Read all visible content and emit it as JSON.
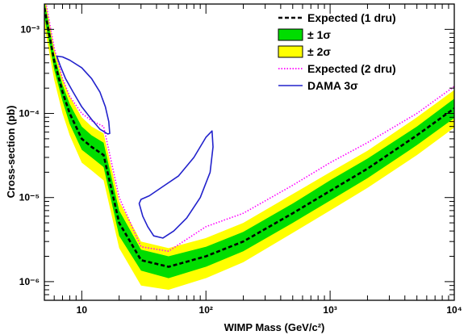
{
  "chart_data": {
    "type": "line",
    "xlabel": "WIMP Mass (GeV/c²)",
    "ylabel": "Cross-section (pb)",
    "x_scale": "log",
    "y_scale": "log",
    "xlim": [
      5,
      10000
    ],
    "ylim": [
      6e-07,
      0.002
    ],
    "x_ticks": [
      {
        "value": 10,
        "label": "10"
      },
      {
        "value": 100,
        "label": "10²"
      },
      {
        "value": 1000,
        "label": "10³"
      },
      {
        "value": 10000,
        "label": "10⁴"
      }
    ],
    "y_ticks": [
      {
        "value": 1e-06,
        "label": "10⁻⁶"
      },
      {
        "value": 1e-05,
        "label": "10⁻⁵"
      },
      {
        "value": 0.0001,
        "label": "10⁻⁴"
      },
      {
        "value": 0.001,
        "label": "10⁻³"
      }
    ],
    "legend": {
      "position": "top-right",
      "entries": [
        {
          "label": "Expected (1 dru)",
          "style": "dashed",
          "color": "#000000"
        },
        {
          "label": "± 1σ",
          "style": "fill",
          "color": "#00dd00"
        },
        {
          "label": "± 2σ",
          "style": "fill",
          "color": "#ffff00"
        },
        {
          "label": "Expected (2 dru)",
          "style": "dotted",
          "color": "#ff00ff"
        },
        {
          "label": "DAMA 3σ",
          "style": "solid",
          "color": "#2222cc"
        }
      ]
    },
    "series": [
      {
        "name": "Expected (1 dru)",
        "x": [
          5,
          6,
          7,
          8,
          10,
          12,
          15,
          20,
          30,
          50,
          100,
          200,
          500,
          1000,
          2000,
          5000,
          10000
        ],
        "y": [
          0.0018,
          0.00042,
          0.00018,
          0.0001,
          5e-05,
          4e-05,
          3.2e-05,
          5e-06,
          1.8e-06,
          1.5e-06,
          2e-06,
          3e-06,
          6.5e-06,
          1.2e-05,
          2.2e-05,
          5.5e-05,
          0.000115
        ]
      },
      {
        "name": "± 1σ",
        "x": [
          5,
          6,
          7,
          8,
          10,
          12,
          15,
          20,
          30,
          50,
          100,
          200,
          500,
          1000,
          2000,
          5000,
          10000
        ],
        "upper": [
          0.0022,
          0.0005,
          0.00022,
          0.00013,
          7e-05,
          5.5e-05,
          4.5e-05,
          7e-06,
          2.4e-06,
          2e-06,
          2.6e-06,
          3.9e-06,
          8.5e-06,
          1.6e-05,
          2.9e-05,
          7e-05,
          0.00015
        ],
        "lower": [
          0.0014,
          0.00033,
          0.00014,
          7.5e-05,
          3.7e-05,
          3e-05,
          2.3e-05,
          3.5e-06,
          1.35e-06,
          1.1e-06,
          1.5e-06,
          2.3e-06,
          5e-06,
          9.2e-06,
          1.7e-05,
          4.2e-05,
          8.8e-05
        ]
      },
      {
        "name": "± 2σ",
        "x": [
          5,
          6,
          7,
          8,
          10,
          12,
          15,
          20,
          30,
          50,
          100,
          200,
          500,
          1000,
          2000,
          5000,
          10000
        ],
        "upper": [
          0.0026,
          0.0006,
          0.00026,
          0.00016,
          9e-05,
          7e-05,
          5.8e-05,
          9e-06,
          3e-06,
          2.5e-06,
          3.3e-06,
          5e-06,
          1.1e-05,
          2e-05,
          3.6e-05,
          9e-05,
          0.00019
        ],
        "lower": [
          0.0011,
          0.00025,
          0.0001,
          5.5e-05,
          2.6e-05,
          2.1e-05,
          1.6e-05,
          2.5e-06,
          9e-07,
          8e-07,
          1.1e-06,
          1.7e-06,
          3.8e-06,
          7e-06,
          1.3e-05,
          3.2e-05,
          6.8e-05
        ]
      },
      {
        "name": "Expected (2 dru)",
        "x": [
          5,
          6,
          7,
          8,
          10,
          12,
          15,
          20,
          30,
          50,
          100,
          200,
          500,
          1000,
          2000,
          5000,
          10000
        ],
        "y": [
          0.0026,
          0.0006,
          0.00026,
          0.00016,
          0.0001,
          8.2e-05,
          7e-05,
          1e-05,
          2.6e-06,
          2.3e-06,
          4.5e-06,
          6.5e-06,
          1.4e-05,
          2.6e-05,
          4.5e-05,
          0.0001,
          0.00021
        ]
      },
      {
        "name": "DAMA 3σ",
        "contours": [
          {
            "x": [
              6.3,
              7,
              8,
              10,
              12,
              14,
              15.5,
              16.5,
              16.8,
              16.2,
              14,
              12,
              10,
              8.5,
              7.4,
              6.7,
              6.3
            ],
            "y": [
              0.00048,
              0.00047,
              0.00043,
              0.00035,
              0.00026,
              0.00018,
              0.00012,
              8e-05,
              5.8e-05,
              5.7e-05,
              6.5e-05,
              8.5e-05,
              0.00012,
              0.00018,
              0.00026,
              0.00037,
              0.00048
            ]
          },
          {
            "x": [
              29,
              30,
              35,
              45,
              60,
              80,
              100,
              112,
              114,
              108,
              90,
              70,
              55,
              45,
              38,
              34,
              31,
              29
            ],
            "y": [
              8.5e-06,
              9.5e-06,
              1.05e-05,
              1.35e-05,
              1.8e-05,
              3e-05,
              5.2e-05,
              6.2e-05,
              4e-05,
              2e-05,
              1e-05,
              5.7e-06,
              4e-06,
              3.3e-06,
              3.5e-06,
              4.5e-06,
              6e-06,
              8.5e-06
            ]
          }
        ]
      }
    ]
  }
}
